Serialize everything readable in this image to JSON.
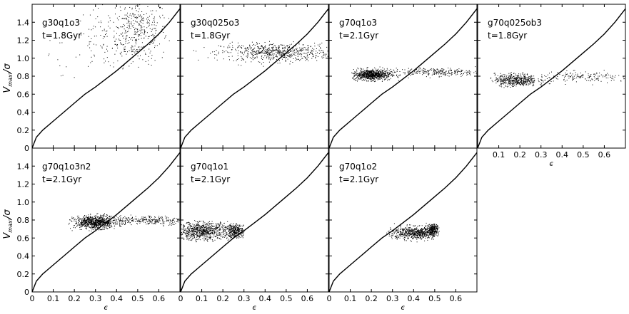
{
  "figure": {
    "ylabel_main": "V",
    "ylabel_sub": "maxl",
    "ylabel_tail": "/σ",
    "xlabel": "ϵ"
  },
  "chart_data": {
    "type": "scatter",
    "xlim": [
      0.0,
      0.7
    ],
    "ylim": [
      0.0,
      1.6
    ],
    "xticks": [
      "0",
      "0.1",
      "0.2",
      "0.3",
      "0.4",
      "0.5",
      "0.6"
    ],
    "yticks": [
      "0",
      "0.2",
      "0.4",
      "0.6",
      "0.8",
      "1.0",
      "1.2",
      "1.4"
    ],
    "grid": false,
    "reference_curve": {
      "x": [
        0,
        0.02,
        0.05,
        0.1,
        0.15,
        0.2,
        0.25,
        0.3,
        0.35,
        0.4,
        0.45,
        0.5,
        0.55,
        0.6,
        0.65,
        0.7
      ],
      "y": [
        0,
        0.12,
        0.2,
        0.3,
        0.4,
        0.5,
        0.6,
        0.68,
        0.77,
        0.86,
        0.96,
        1.06,
        1.16,
        1.27,
        1.4,
        1.55
      ]
    },
    "panels": [
      {
        "name": "g30q1o3",
        "time": "t=1.8Gyr",
        "xlabel": "ϵ",
        "clouds": [
          {
            "cx": 0.5,
            "cy": 1.3,
            "sx": 0.07,
            "sy": 0.18,
            "n": 380,
            "xmin": 0.38,
            "xmax": 0.65,
            "ymin": 0.85,
            "ymax": 1.6
          },
          {
            "cx": 0.35,
            "cy": 1.22,
            "sx": 0.08,
            "sy": 0.18,
            "n": 120,
            "xmin": 0.22,
            "xmax": 0.48,
            "ymin": 0.8,
            "ymax": 1.6
          },
          {
            "cx": 0.12,
            "cy": 0.9,
            "sx": 0.06,
            "sy": 0.2,
            "n": 14,
            "xmin": 0.05,
            "xmax": 0.25,
            "ymin": 0.55,
            "ymax": 1.3
          }
        ]
      },
      {
        "name": "g30q025o3",
        "time": "t=1.8Gyr",
        "xlabel": "ϵ",
        "clouds": [
          {
            "cx": 0.45,
            "cy": 1.07,
            "sx": 0.13,
            "sy": 0.05,
            "n": 650,
            "xmin": 0.05,
            "xmax": 0.7,
            "ymin": 0.9,
            "ymax": 1.22
          }
        ]
      },
      {
        "name": "g70q1o3",
        "time": "t=2.1Gyr",
        "xlabel": "ϵ",
        "clouds": [
          {
            "cx": 0.2,
            "cy": 0.82,
            "sx": 0.045,
            "sy": 0.03,
            "n": 800,
            "xmin": 0.1,
            "xmax": 0.34,
            "ymin": 0.74,
            "ymax": 0.93
          },
          {
            "cx": 0.5,
            "cy": 0.85,
            "sx": 0.12,
            "sy": 0.022,
            "n": 280,
            "xmin": 0.3,
            "xmax": 0.7,
            "ymin": 0.78,
            "ymax": 0.92
          }
        ]
      },
      {
        "name": "g70q025ob3",
        "time": "t=1.8Gyr",
        "xlabel": "ϵ",
        "clouds": [
          {
            "cx": 0.18,
            "cy": 0.76,
            "sx": 0.05,
            "sy": 0.035,
            "n": 500,
            "xmin": 0.05,
            "xmax": 0.32,
            "ymin": 0.66,
            "ymax": 0.88
          },
          {
            "cx": 0.5,
            "cy": 0.79,
            "sx": 0.12,
            "sy": 0.03,
            "n": 170,
            "xmin": 0.3,
            "xmax": 0.7,
            "ymin": 0.7,
            "ymax": 0.88
          }
        ]
      },
      {
        "name": "g70q1o3n2",
        "time": "t=2.1Gyr",
        "xlabel": "ϵ",
        "clouds": [
          {
            "cx": 0.3,
            "cy": 0.78,
            "sx": 0.05,
            "sy": 0.035,
            "n": 850,
            "xmin": 0.17,
            "xmax": 0.45,
            "ymin": 0.68,
            "ymax": 0.88
          },
          {
            "cx": 0.55,
            "cy": 0.8,
            "sx": 0.1,
            "sy": 0.025,
            "n": 280,
            "xmin": 0.4,
            "xmax": 0.7,
            "ymin": 0.73,
            "ymax": 0.86
          }
        ]
      },
      {
        "name": "g70q1o1",
        "time": "t=2.1Gyr",
        "xlabel": "ϵ",
        "clouds": [
          {
            "cx": 0.1,
            "cy": 0.68,
            "sx": 0.065,
            "sy": 0.05,
            "n": 800,
            "xmin": 0.0,
            "xmax": 0.28,
            "ymin": 0.56,
            "ymax": 0.8
          },
          {
            "cx": 0.26,
            "cy": 0.68,
            "sx": 0.025,
            "sy": 0.04,
            "n": 350,
            "xmin": 0.2,
            "xmax": 0.3,
            "ymin": 0.6,
            "ymax": 0.77
          }
        ]
      },
      {
        "name": "g70q1o2",
        "time": "t=2.1Gyr",
        "xlabel": "ϵ",
        "clouds": [
          {
            "cx": 0.41,
            "cy": 0.66,
            "sx": 0.065,
            "sy": 0.035,
            "n": 700,
            "xmin": 0.27,
            "xmax": 0.5,
            "ymin": 0.55,
            "ymax": 0.77
          },
          {
            "cx": 0.49,
            "cy": 0.7,
            "sx": 0.015,
            "sy": 0.03,
            "n": 280,
            "xmin": 0.45,
            "xmax": 0.52,
            "ymin": 0.62,
            "ymax": 0.77
          }
        ]
      }
    ]
  }
}
